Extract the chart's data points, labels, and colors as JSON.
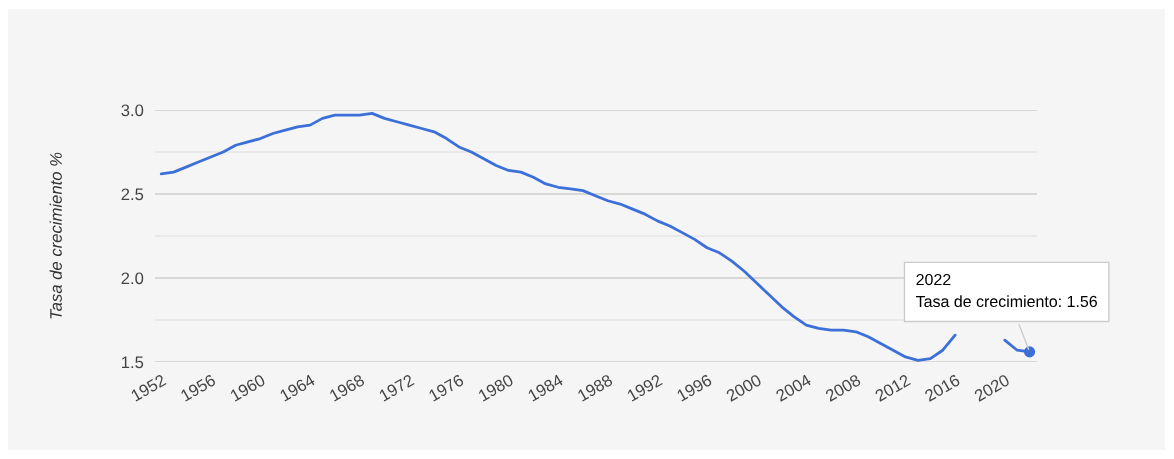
{
  "chart_data": {
    "type": "line",
    "ylabel": "Tasa de crecimiento %",
    "x": [
      1952,
      1953,
      1954,
      1955,
      1956,
      1957,
      1958,
      1959,
      1960,
      1961,
      1962,
      1963,
      1964,
      1965,
      1966,
      1967,
      1968,
      1969,
      1970,
      1971,
      1972,
      1973,
      1974,
      1975,
      1976,
      1977,
      1978,
      1979,
      1980,
      1981,
      1982,
      1983,
      1984,
      1985,
      1986,
      1987,
      1988,
      1989,
      1990,
      1991,
      1992,
      1993,
      1994,
      1995,
      1996,
      1997,
      1998,
      1999,
      2000,
      2001,
      2002,
      2003,
      2004,
      2005,
      2006,
      2007,
      2008,
      2009,
      2010,
      2011,
      2012,
      2013,
      2014,
      2015,
      2016,
      2017,
      2018,
      2019,
      2020,
      2021,
      2022
    ],
    "series": [
      {
        "color": "#3c6fd8",
        "values": [
          2.62,
          2.63,
          2.66,
          2.69,
          2.72,
          2.75,
          2.79,
          2.81,
          2.83,
          2.86,
          2.88,
          2.9,
          2.91,
          2.95,
          2.97,
          2.97,
          2.97,
          2.98,
          2.95,
          2.93,
          2.91,
          2.89,
          2.87,
          2.83,
          2.78,
          2.75,
          2.71,
          2.67,
          2.64,
          2.63,
          2.6,
          2.56,
          2.54,
          2.53,
          2.52,
          2.49,
          2.46,
          2.44,
          2.41,
          2.38,
          2.34,
          2.31,
          2.27,
          2.23,
          2.18,
          2.15,
          2.1,
          2.04,
          1.97,
          1.9,
          1.83,
          1.77,
          1.72,
          1.7,
          1.69,
          1.69,
          1.68,
          1.65,
          1.61,
          1.57,
          1.53,
          1.51,
          1.52,
          1.57,
          1.66,
          null,
          null,
          null,
          1.63,
          1.57,
          1.56
        ]
      }
    ],
    "xlim": [
      1951.5,
      2022.6
    ],
    "xticks": [
      1952,
      1956,
      1960,
      1964,
      1968,
      1972,
      1976,
      1980,
      1984,
      1988,
      1992,
      1996,
      2000,
      2004,
      2008,
      2012,
      2016,
      2020
    ],
    "ylim": [
      1.5,
      3.0
    ],
    "yticks": [
      {
        "value": 1.5,
        "label": "1.5"
      },
      {
        "value": 1.75,
        "label": null
      },
      {
        "value": 2.0,
        "label": "2.0"
      },
      {
        "value": 2.25,
        "label": null
      },
      {
        "value": 2.5,
        "label": "2.5"
      },
      {
        "value": 2.75,
        "label": null
      },
      {
        "value": 3.0,
        "label": "3.0"
      }
    ],
    "grid": "y",
    "legend": false,
    "marker": "none",
    "line_style": "solid",
    "annotations": [
      {
        "text": "2022\nTasa de crecimiento: 1.56",
        "x": 2022,
        "y": 1.56
      }
    ]
  }
}
